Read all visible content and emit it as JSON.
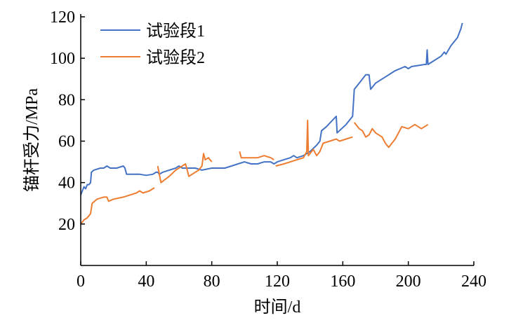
{
  "chart_data": {
    "type": "line",
    "title": "",
    "xlabel": "时间/d",
    "ylabel": "锚杆受力/MPa",
    "xlim": [
      0,
      240
    ],
    "ylim": [
      0,
      120
    ],
    "xticks": [
      0,
      40,
      80,
      120,
      160,
      200,
      240
    ],
    "yticks": [
      20,
      40,
      60,
      80,
      100,
      120
    ],
    "grid": false,
    "legend_position": "top-left",
    "series": [
      {
        "name": "试验段1",
        "color": "#4472c4",
        "x": [
          0,
          1,
          2,
          3,
          4,
          5,
          6,
          6.5,
          8,
          12,
          14,
          16,
          18,
          22,
          26,
          27,
          28,
          32,
          36,
          40,
          44,
          46,
          47,
          48,
          50,
          54,
          58,
          60,
          62,
          66,
          70,
          74,
          80,
          84,
          88,
          92,
          96,
          100,
          104,
          108,
          112,
          116,
          118,
          120,
          124,
          128,
          130,
          132,
          136,
          140,
          144,
          146,
          147,
          150,
          156,
          156.5,
          162,
          166,
          167,
          170,
          174,
          176,
          177,
          180,
          186,
          192,
          198,
          200,
          202,
          206,
          210,
          211,
          211.5,
          212,
          216,
          220,
          222,
          223,
          226,
          230,
          232,
          233
        ],
        "y": [
          34,
          36,
          38,
          37,
          39,
          39,
          40,
          45,
          46,
          47,
          47,
          48,
          47,
          47,
          48,
          47,
          44,
          44,
          44,
          43.5,
          44,
          45,
          45,
          44,
          45,
          46,
          47,
          48,
          47,
          47,
          47,
          46,
          47,
          47,
          47,
          48,
          49,
          50,
          49,
          49,
          50,
          50,
          49,
          50,
          51,
          52,
          53,
          52,
          53,
          55,
          58,
          60,
          65,
          67,
          72,
          64,
          68,
          72,
          85,
          88,
          92,
          92,
          85,
          88,
          91,
          94,
          96,
          95,
          96,
          96.5,
          97,
          97,
          104,
          97,
          99,
          101,
          103,
          102,
          106,
          110,
          114,
          117
        ]
      },
      {
        "name": "试验段2",
        "color": "#ed7d31",
        "x": [
          0,
          2,
          4,
          5,
          6,
          7,
          10,
          14,
          16,
          17,
          20,
          26,
          30,
          34,
          36,
          38,
          42,
          44,
          45,
          null,
          47,
          48,
          49,
          54,
          58,
          62,
          64,
          65,
          66,
          68,
          72,
          74,
          75,
          76,
          78,
          80,
          null,
          97,
          98,
          102,
          108,
          112,
          116,
          118,
          null,
          119,
          124,
          128,
          132,
          136,
          138,
          138.5,
          139,
          142,
          144,
          146,
          148,
          152,
          156,
          158,
          162,
          166,
          null,
          167,
          170,
          172,
          174,
          176,
          178,
          180,
          184,
          186,
          188,
          190,
          192,
          194,
          196,
          200,
          204,
          208,
          212
        ],
        "y": [
          20,
          22,
          23,
          24,
          25,
          30,
          32,
          33,
          33,
          31,
          32,
          33,
          34,
          35,
          36,
          35,
          36,
          37,
          37.5,
          null,
          48,
          44,
          40,
          43,
          46,
          48,
          49,
          46,
          43,
          44,
          46,
          48,
          54,
          51,
          52,
          50,
          null,
          55,
          52,
          52,
          52,
          53,
          52,
          51,
          null,
          48,
          49,
          50,
          51,
          52,
          55,
          70,
          53,
          56,
          53,
          55,
          59,
          60,
          61,
          60,
          61,
          62,
          null,
          69,
          66,
          65,
          62,
          63,
          66,
          64,
          62,
          59,
          57,
          59,
          61,
          64,
          67,
          66,
          68,
          66,
          68
        ]
      }
    ]
  }
}
